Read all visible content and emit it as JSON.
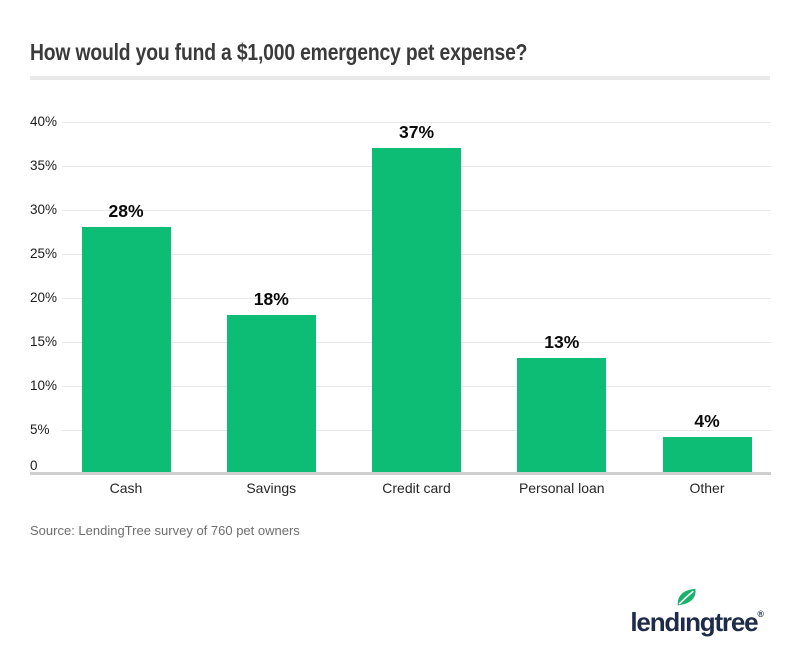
{
  "header": {
    "title": "How would you fund a $1,000 emergency pet expense?"
  },
  "chart_data": {
    "type": "bar",
    "title": "How would you fund a $1,000 emergency pet expense?",
    "categories": [
      "Cash",
      "Savings",
      "Credit card",
      "Personal loan",
      "Other"
    ],
    "values": [
      28,
      18,
      37,
      13,
      4
    ],
    "value_labels": [
      "28%",
      "18%",
      "37%",
      "13%",
      "4%"
    ],
    "xlabel": "",
    "ylabel": "",
    "ylim": [
      0,
      40
    ],
    "ytick_step": 5,
    "ytick_labels_top_to_bottom": [
      "40%",
      "35%",
      "30%",
      "25%",
      "20%",
      "15%",
      "10%",
      "5%",
      "0"
    ],
    "grid": true,
    "legend": false,
    "bar_color": "#0dbd76"
  },
  "footer": {
    "source": "Source: LendingTree survey of 760 pet owners",
    "logo": {
      "brand": "lendingtree",
      "display": {
        "pre": "lend",
        "i": "ı",
        "post": "ngtree"
      },
      "registered": "®",
      "navy": "#1e2b49",
      "leaf_color": "#17b169"
    }
  }
}
